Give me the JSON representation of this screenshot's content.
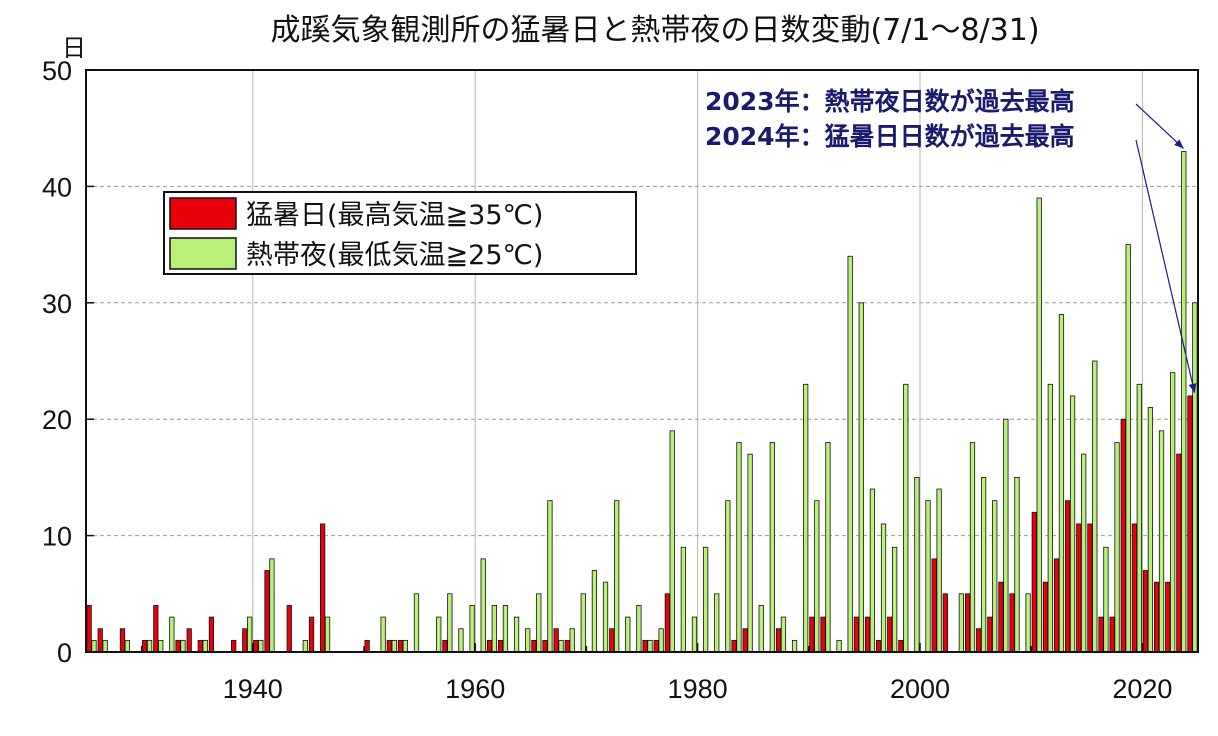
{
  "chart_data": {
    "type": "bar",
    "title": "成蹊気象観測所の猛暑日と熱帯夜の日数変動(7/1〜8/31)",
    "ylabel": "日",
    "xlabel": "",
    "ylim": [
      0,
      50
    ],
    "yticks": [
      0,
      10,
      20,
      30,
      40,
      50
    ],
    "xlim": [
      1925,
      2024
    ],
    "xticks": [
      1940,
      1960,
      1980,
      2000,
      2020
    ],
    "grid": true,
    "legend": {
      "position": "upper-left"
    },
    "series": [
      {
        "name": "猛暑日(最高気温≧35℃)",
        "color": "#e8000b",
        "values": [
          [
            1925,
            4
          ],
          [
            1926,
            2
          ],
          [
            1928,
            2
          ],
          [
            1930,
            1
          ],
          [
            1931,
            4
          ],
          [
            1933,
            1
          ],
          [
            1934,
            2
          ],
          [
            1935,
            1
          ],
          [
            1936,
            3
          ],
          [
            1938,
            1
          ],
          [
            1939,
            2
          ],
          [
            1940,
            1
          ],
          [
            1941,
            7
          ],
          [
            1943,
            4
          ],
          [
            1945,
            3
          ],
          [
            1946,
            11
          ],
          [
            1950,
            1
          ],
          [
            1952,
            1
          ],
          [
            1953,
            1
          ],
          [
            1957,
            1
          ],
          [
            1961,
            1
          ],
          [
            1962,
            1
          ],
          [
            1965,
            1
          ],
          [
            1966,
            1
          ],
          [
            1967,
            2
          ],
          [
            1968,
            1
          ],
          [
            1972,
            2
          ],
          [
            1975,
            1
          ],
          [
            1976,
            1
          ],
          [
            1977,
            5
          ],
          [
            1983,
            1
          ],
          [
            1984,
            2
          ],
          [
            1987,
            2
          ],
          [
            1990,
            3
          ],
          [
            1991,
            3
          ],
          [
            1994,
            3
          ],
          [
            1995,
            3
          ],
          [
            1996,
            1
          ],
          [
            1997,
            3
          ],
          [
            1998,
            1
          ],
          [
            2001,
            8
          ],
          [
            2002,
            5
          ],
          [
            2004,
            5
          ],
          [
            2005,
            2
          ],
          [
            2006,
            3
          ],
          [
            2007,
            6
          ],
          [
            2008,
            5
          ],
          [
            2010,
            12
          ],
          [
            2011,
            6
          ],
          [
            2012,
            8
          ],
          [
            2013,
            13
          ],
          [
            2014,
            11
          ],
          [
            2015,
            11
          ],
          [
            2016,
            3
          ],
          [
            2017,
            3
          ],
          [
            2018,
            20
          ],
          [
            2019,
            11
          ],
          [
            2020,
            7
          ],
          [
            2021,
            6
          ],
          [
            2022,
            6
          ],
          [
            2023,
            17
          ],
          [
            2024,
            22
          ]
        ]
      },
      {
        "name": "熱帯夜(最低気温≧25℃)",
        "color": "#b8f078",
        "values": [
          [
            1925,
            1
          ],
          [
            1926,
            1
          ],
          [
            1928,
            1
          ],
          [
            1930,
            1
          ],
          [
            1931,
            1
          ],
          [
            1932,
            3
          ],
          [
            1933,
            1
          ],
          [
            1935,
            1
          ],
          [
            1939,
            3
          ],
          [
            1940,
            1
          ],
          [
            1941,
            8
          ],
          [
            1944,
            1
          ],
          [
            1946,
            3
          ],
          [
            1951,
            3
          ],
          [
            1952,
            1
          ],
          [
            1953,
            1
          ],
          [
            1954,
            5
          ],
          [
            1956,
            3
          ],
          [
            1957,
            5
          ],
          [
            1958,
            2
          ],
          [
            1959,
            4
          ],
          [
            1960,
            8
          ],
          [
            1961,
            4
          ],
          [
            1962,
            4
          ],
          [
            1963,
            3
          ],
          [
            1964,
            2
          ],
          [
            1965,
            5
          ],
          [
            1966,
            13
          ],
          [
            1967,
            1
          ],
          [
            1968,
            2
          ],
          [
            1969,
            5
          ],
          [
            1970,
            7
          ],
          [
            1971,
            6
          ],
          [
            1972,
            13
          ],
          [
            1973,
            3
          ],
          [
            1974,
            4
          ],
          [
            1975,
            1
          ],
          [
            1976,
            2
          ],
          [
            1977,
            19
          ],
          [
            1978,
            9
          ],
          [
            1979,
            3
          ],
          [
            1980,
            9
          ],
          [
            1981,
            5
          ],
          [
            1982,
            13
          ],
          [
            1983,
            18
          ],
          [
            1984,
            17
          ],
          [
            1985,
            4
          ],
          [
            1986,
            18
          ],
          [
            1987,
            3
          ],
          [
            1988,
            1
          ],
          [
            1989,
            23
          ],
          [
            1990,
            13
          ],
          [
            1991,
            18
          ],
          [
            1992,
            1
          ],
          [
            1993,
            34
          ],
          [
            1994,
            30
          ],
          [
            1995,
            14
          ],
          [
            1996,
            11
          ],
          [
            1997,
            9
          ],
          [
            1998,
            23
          ],
          [
            1999,
            15
          ],
          [
            2000,
            13
          ],
          [
            2001,
            14
          ],
          [
            2003,
            5
          ],
          [
            2004,
            18
          ],
          [
            2005,
            15
          ],
          [
            2006,
            13
          ],
          [
            2007,
            20
          ],
          [
            2008,
            15
          ],
          [
            2009,
            5
          ],
          [
            2010,
            39
          ],
          [
            2011,
            23
          ],
          [
            2012,
            29
          ],
          [
            2013,
            22
          ],
          [
            2014,
            17
          ],
          [
            2015,
            25
          ],
          [
            2016,
            9
          ],
          [
            2017,
            18
          ],
          [
            2018,
            35
          ],
          [
            2019,
            23
          ],
          [
            2020,
            21
          ],
          [
            2021,
            19
          ],
          [
            2022,
            24
          ],
          [
            2023,
            43
          ],
          [
            2024,
            30
          ]
        ]
      }
    ],
    "annotations": [
      {
        "text": "2023年：熱帯夜日数が過去最高",
        "target_year": 2023,
        "target_value": 43
      },
      {
        "text": "2024年：猛暑日日数が過去最高",
        "target_year": 2024,
        "target_value": 22
      }
    ]
  }
}
